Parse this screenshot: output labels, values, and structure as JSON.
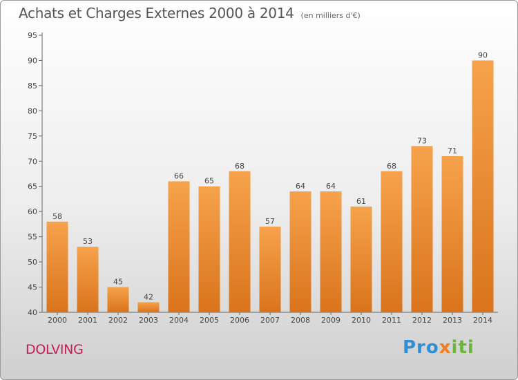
{
  "header": {
    "title": "Achats et Charges Externes 2000 à 2014",
    "unit": "(en milliers d'€)"
  },
  "footer": {
    "commune": "DOLVING",
    "brand": [
      "Pro",
      "x",
      "iti"
    ]
  },
  "colors": {
    "bar_top": "#f6a24c",
    "bar_bottom": "#d9741c",
    "title": "#555555",
    "commune": "#c71e55"
  },
  "chart_data": {
    "type": "bar",
    "categories": [
      "2000",
      "2001",
      "2002",
      "2003",
      "2004",
      "2005",
      "2006",
      "2007",
      "2008",
      "2009",
      "2010",
      "2011",
      "2012",
      "2013",
      "2014"
    ],
    "values": [
      58,
      53,
      45,
      42,
      66,
      65,
      68,
      57,
      64,
      64,
      61,
      68,
      73,
      71,
      90
    ],
    "ylim": [
      40,
      95
    ],
    "yticks": [
      40,
      45,
      50,
      55,
      60,
      65,
      70,
      75,
      80,
      85,
      90,
      95
    ],
    "grid": false,
    "data_labels": true
  }
}
